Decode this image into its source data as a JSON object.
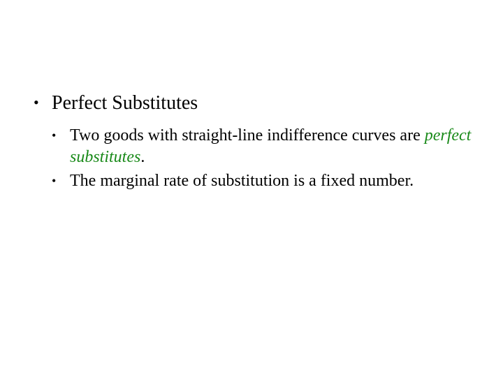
{
  "slide": {
    "background_color": "#ffffff",
    "text_color": "#000000",
    "accent_color": "#1a8a1a",
    "font_family": "Times New Roman",
    "level1_fontsize": 28,
    "level2_fontsize": 24,
    "bullet_glyph": "•",
    "items": [
      {
        "text": "Perfect Substitutes",
        "children": [
          {
            "prefix": "Two goods with straight-line indifference curves are ",
            "emph": "perfect substitutes",
            "suffix": "."
          },
          {
            "prefix": "The marginal rate of substitution is a fixed number.",
            "emph": "",
            "suffix": ""
          }
        ]
      }
    ]
  }
}
